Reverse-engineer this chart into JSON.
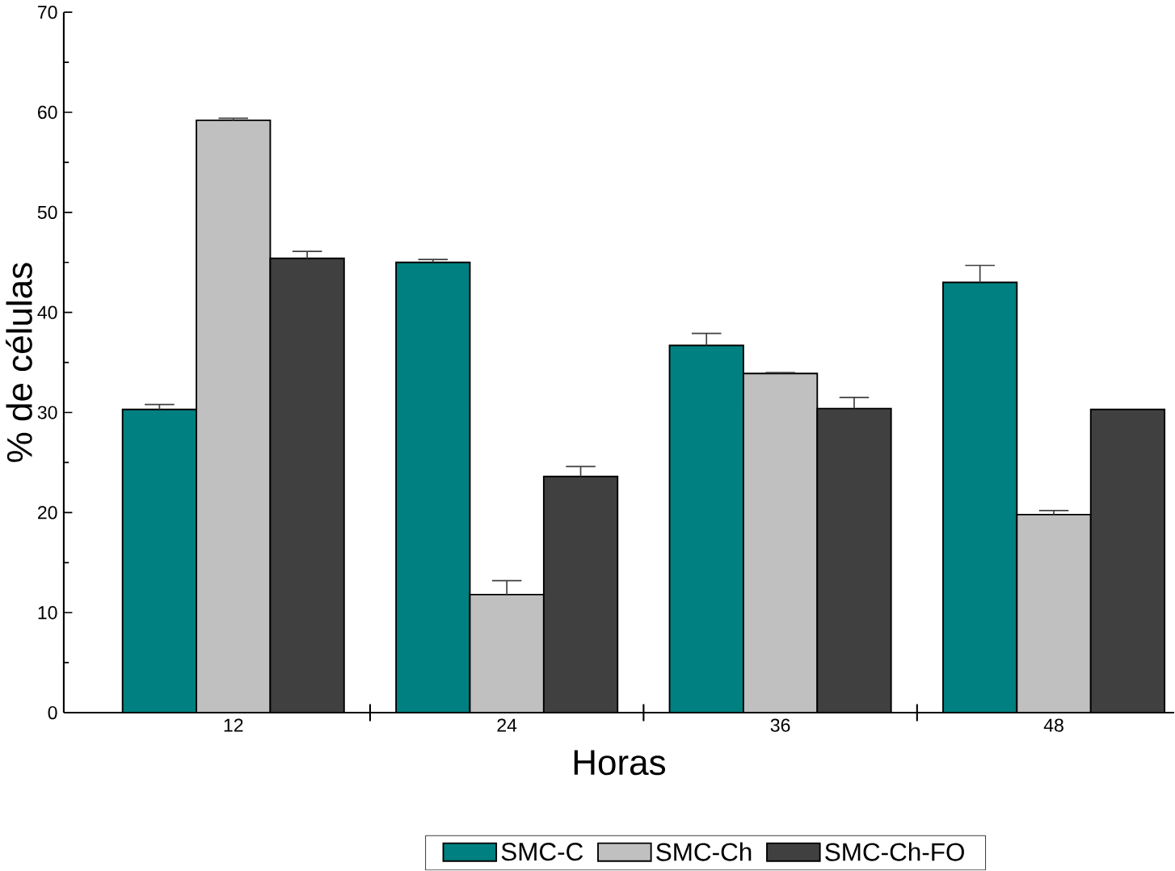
{
  "chart_data": {
    "type": "bar",
    "xlabel": "Horas",
    "ylabel": "% de células",
    "categories": [
      "12",
      "24",
      "36",
      "48"
    ],
    "series": [
      {
        "name": "SMC-C",
        "color": "#008080",
        "values": [
          30.3,
          45.0,
          36.7,
          43.0
        ],
        "errors": [
          0.5,
          0.3,
          1.2,
          1.7
        ]
      },
      {
        "name": "SMC-Ch",
        "color": "#c0c0c0",
        "values": [
          59.2,
          11.8,
          33.9,
          19.8
        ],
        "errors": [
          0.2,
          1.4,
          0.1,
          0.4
        ]
      },
      {
        "name": "SMC-Ch-FO",
        "color": "#404040",
        "values": [
          45.4,
          23.6,
          30.4,
          30.3
        ],
        "errors": [
          0.7,
          1.0,
          1.1,
          null
        ]
      }
    ],
    "ylim": [
      0,
      70
    ],
    "yticks": [
      0,
      10,
      20,
      30,
      40,
      50,
      60,
      70
    ],
    "grid": false,
    "legend": "bottom"
  }
}
